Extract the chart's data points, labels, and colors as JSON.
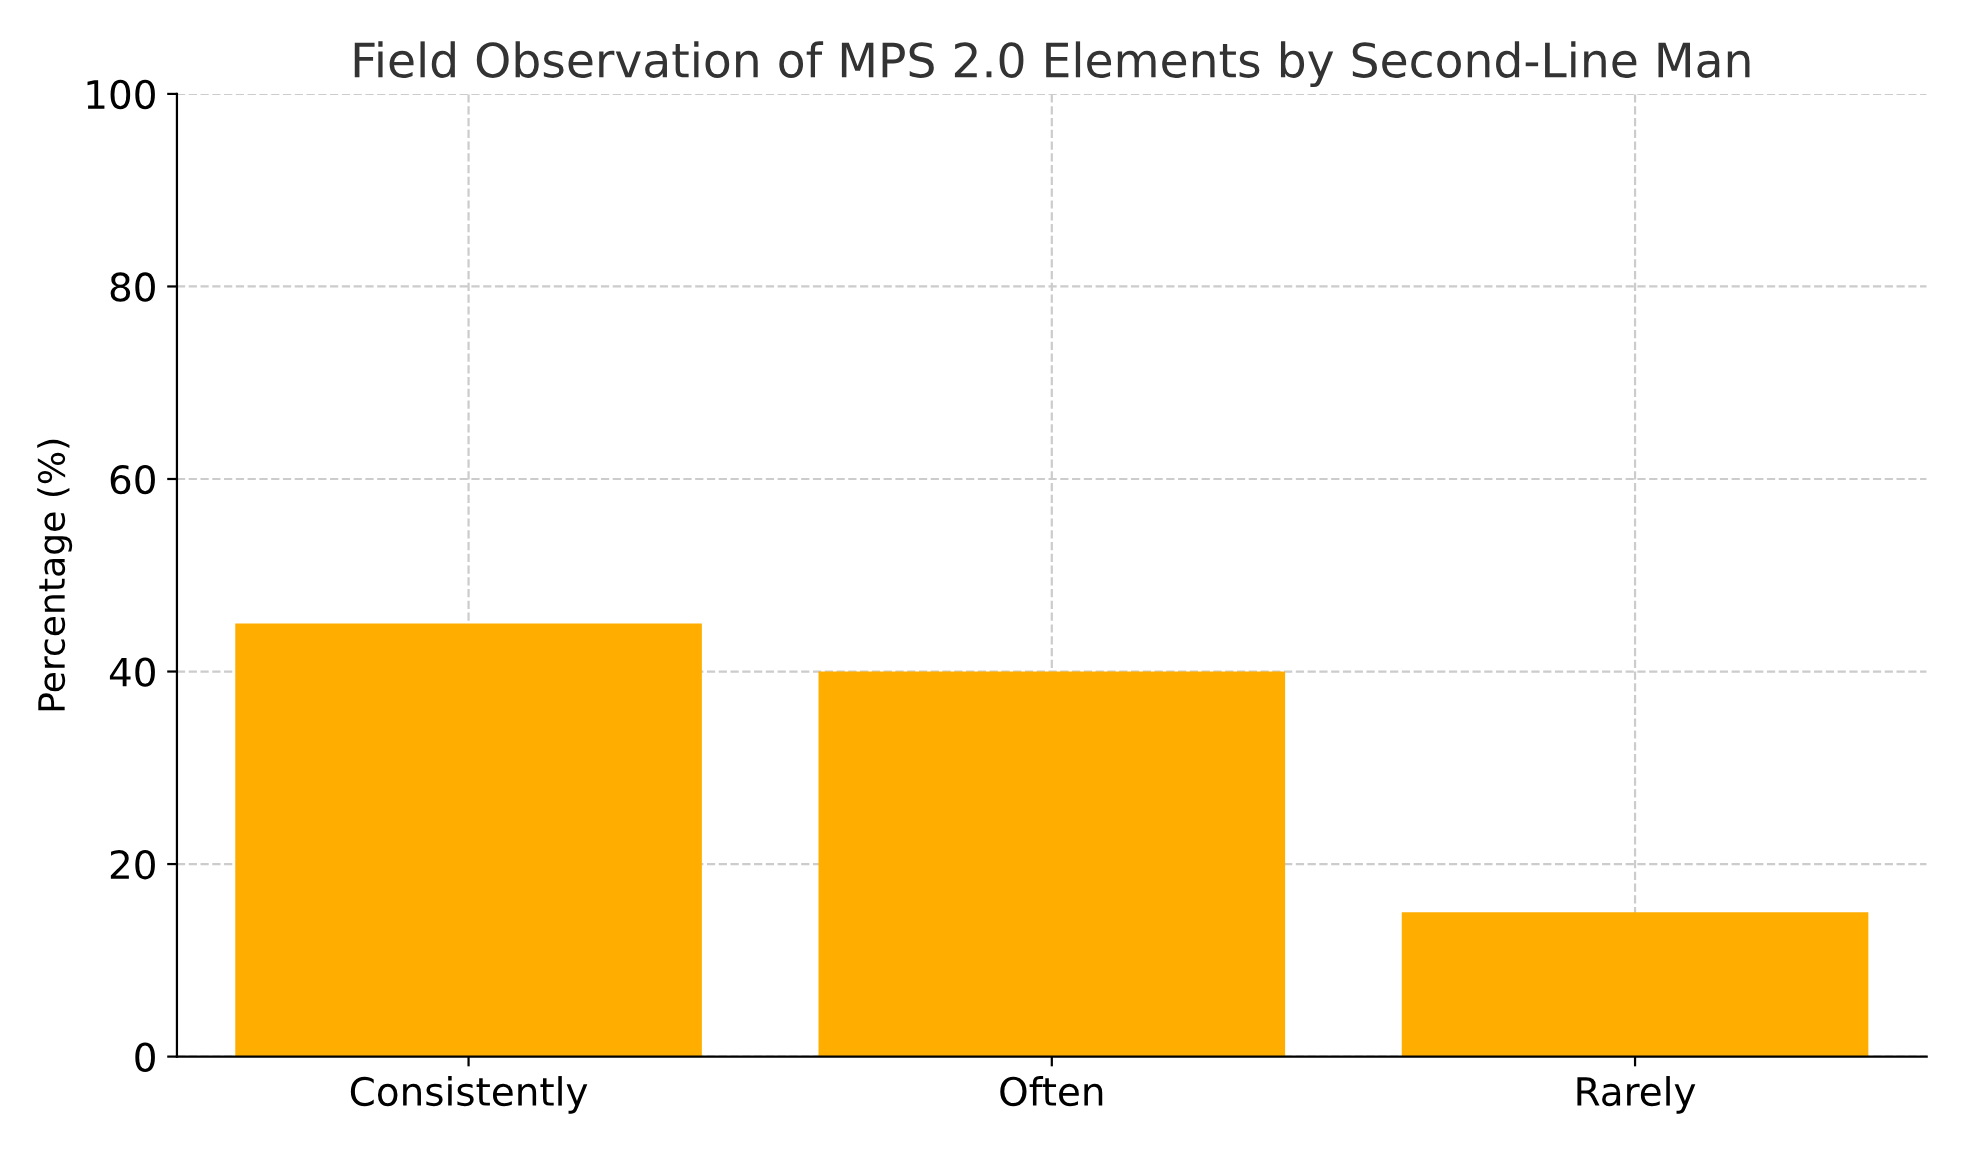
{
  "chart_data": {
    "type": "bar",
    "title": "Field Observation of MPS 2.0 Elements by Second-Line Man",
    "ylabel": "Percentage (%)",
    "categories": [
      "Consistently",
      "Often",
      "Rarely"
    ],
    "values": [
      45,
      40,
      15
    ],
    "color": "#ffae00",
    "ylim": [
      0,
      100
    ],
    "yticks": [
      0,
      20,
      40,
      60,
      80,
      100
    ],
    "grid": true
  }
}
